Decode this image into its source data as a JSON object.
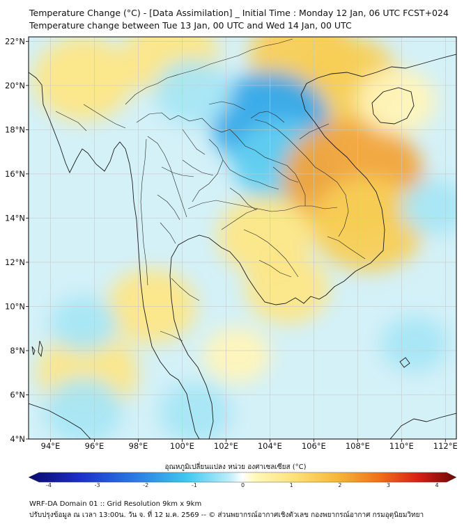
{
  "title": {
    "line1": "Temperature Change (°C) - [Data Assimilation] _ Initial Time : Monday 12 Jan, 06 UTC FCST+024",
    "line2": "Temperature change between Tue 13 Jan, 00 UTC and Wed 14 Jan, 00 UTC"
  },
  "map": {
    "lon_range": [
      93,
      112.5
    ],
    "lat_range": [
      4,
      22.2
    ],
    "lat_ticks": [
      {
        "value": 22,
        "label": "22°N"
      },
      {
        "value": 20,
        "label": "20°N"
      },
      {
        "value": 18,
        "label": "18°N"
      },
      {
        "value": 16,
        "label": "16°N"
      },
      {
        "value": 14,
        "label": "14°N"
      },
      {
        "value": 12,
        "label": "12°N"
      },
      {
        "value": 10,
        "label": "10°N"
      },
      {
        "value": 8,
        "label": "8°N"
      },
      {
        "value": 6,
        "label": "6°N"
      },
      {
        "value": 4,
        "label": "4°N"
      }
    ],
    "lon_ticks": [
      {
        "value": 94,
        "label": "94°E"
      },
      {
        "value": 96,
        "label": "96°E"
      },
      {
        "value": 98,
        "label": "98°E"
      },
      {
        "value": 100,
        "label": "100°E"
      },
      {
        "value": 102,
        "label": "102°E"
      },
      {
        "value": 104,
        "label": "104°E"
      },
      {
        "value": 106,
        "label": "106°E"
      },
      {
        "value": 108,
        "label": "108°E"
      },
      {
        "value": 110,
        "label": "110°E"
      },
      {
        "value": 112,
        "label": "112°E"
      }
    ],
    "field_blobs": [
      {
        "lon": 95.5,
        "lat": 20.3,
        "value": 0.9
      },
      {
        "lon": 99.5,
        "lat": 21.3,
        "value": 0.8
      },
      {
        "lon": 105.5,
        "lat": 21.3,
        "value": 1.0
      },
      {
        "lon": 107.5,
        "lat": 20.2,
        "value": 1.0
      },
      {
        "lon": 104.0,
        "lat": 18.4,
        "value": -1.2
      },
      {
        "lon": 104.6,
        "lat": 16.5,
        "value": -0.9
      },
      {
        "lon": 100.5,
        "lat": 19.7,
        "value": -0.5
      },
      {
        "lon": 107.8,
        "lat": 15.8,
        "value": 1.6
      },
      {
        "lon": 108.5,
        "lat": 13.7,
        "value": 1.1
      },
      {
        "lon": 103.8,
        "lat": 13.2,
        "value": 0.8
      },
      {
        "lon": 104.8,
        "lat": 10.8,
        "value": 0.6
      },
      {
        "lon": 95.7,
        "lat": 7.0,
        "value": 0.9
      },
      {
        "lon": 98.6,
        "lat": 10.0,
        "value": 0.7
      },
      {
        "lon": 100.6,
        "lat": 5.2,
        "value": -0.4
      },
      {
        "lon": 95.5,
        "lat": 5.3,
        "value": -0.5
      },
      {
        "lon": 95.5,
        "lat": 9.2,
        "value": -0.3
      },
      {
        "lon": 111.5,
        "lat": 14.5,
        "value": -0.3
      },
      {
        "lon": 110.6,
        "lat": 8.3,
        "value": -0.3
      },
      {
        "lon": 109.8,
        "lat": 19.3,
        "value": 0.5
      },
      {
        "lon": 102.5,
        "lat": 7.8,
        "value": 0.3
      }
    ]
  },
  "colorbar": {
    "title": "อุณหภูมิเปลี่ยนแปลง หน่วย องศาเซลเซียส (°C)",
    "min": -4,
    "max": 4,
    "ticks": [
      "-4",
      "-3",
      "-2",
      "-1",
      "0",
      "1",
      "2",
      "3",
      "4"
    ]
  },
  "footer": {
    "line1": "WRF-DA Domain 01 :: Grid Resolution 9km x 9km",
    "line2": "ปรับปรุงข้อมูล ณ เวลา 13:00น. วัน จ. ที่ 12 ม.ค. 2569 -- © ส่วนพยากรณ์อากาศเชิงตัวเลข กองพยากรณ์อากาศ กรมอุตุนิยมวิทยา"
  }
}
